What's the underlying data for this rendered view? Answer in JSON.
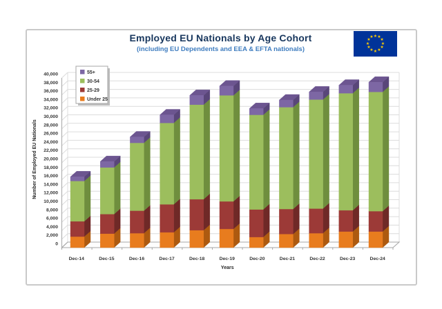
{
  "header": {
    "title": "Employed EU Nationals by Age Cohort",
    "subtitle": "(including EU Dependents and EEA & EFTA nationals)",
    "title_color": "#17365D",
    "subtitle_color": "#3E7CBF"
  },
  "flag": {
    "name": "EU flag",
    "background": "#003399",
    "star_color": "#FFCC00",
    "star_count": 12
  },
  "frame": {
    "border_color": "#C9C9C9",
    "background": "#FFFFFF"
  },
  "chart_data": {
    "type": "bar",
    "stacked": true,
    "pseudo_3d": true,
    "title": "Employed EU Nationals by Age Cohort",
    "subtitle": "(including EU Dependents and EEA & EFTA nationals)",
    "xlabel": "Years",
    "ylabel": "Number of Employed EU Nationals",
    "ylim": [
      0,
      40000
    ],
    "ytick_step": 2000,
    "grid": true,
    "legend_position": "top-left-inside",
    "categories": [
      "Dec-14",
      "Dec-15",
      "Dec-16",
      "Dec-17",
      "Dec-18",
      "Dec-19",
      "Dec-20",
      "Dec-21",
      "Dec-22",
      "Dec-23",
      "Dec-24"
    ],
    "series": [
      {
        "name": "Under 25",
        "color": "#E87C1E",
        "side_color": "#AD5A10",
        "top_color": "#F09A4A",
        "values": [
          2600,
          3300,
          3400,
          3600,
          4100,
          4400,
          2500,
          3200,
          3400,
          3800,
          3800
        ]
      },
      {
        "name": "25-29",
        "color": "#9C3A37",
        "side_color": "#6F2927",
        "top_color": "#B05450",
        "values": [
          3600,
          4600,
          5300,
          6600,
          7300,
          6500,
          6500,
          5900,
          5800,
          5000,
          4800
        ]
      },
      {
        "name": "30-54",
        "color": "#9CBE5D",
        "side_color": "#6F8E3E",
        "top_color": "#B2CD7E",
        "values": [
          9500,
          11000,
          16000,
          19200,
          22300,
          25000,
          22300,
          24000,
          25700,
          27600,
          28100
        ]
      },
      {
        "name": "55+",
        "color": "#7D67A4",
        "side_color": "#594679",
        "top_color": "#6C5590",
        "values": [
          1000,
          1400,
          1400,
          1900,
          2200,
          2200,
          1500,
          1700,
          1800,
          1900,
          2300
        ]
      }
    ],
    "totals": [
      16700,
      20300,
      26100,
      31300,
      35900,
      38100,
      32800,
      34800,
      36700,
      38300,
      39000
    ],
    "legend_order": [
      "55+",
      "30-54",
      "25-29",
      "Under 25"
    ],
    "yticks": [
      "0",
      "2,000",
      "4,000",
      "6,000",
      "8,000",
      "10,000",
      "12,000",
      "14,000",
      "16,000",
      "18,000",
      "20,000",
      "22,000",
      "24,000",
      "26,000",
      "28,000",
      "30,000",
      "32,000",
      "34,000",
      "36,000",
      "38,000",
      "40,000"
    ],
    "colors": {
      "gridline": "#DCDCDC",
      "axis_line": "#A6A6A6",
      "tick_text": "#333333",
      "axis_title_text": "#262626",
      "legend_border": "#A6A6A6",
      "legend_shadow": "#BDBDBD",
      "legend_text": "#333333"
    }
  }
}
